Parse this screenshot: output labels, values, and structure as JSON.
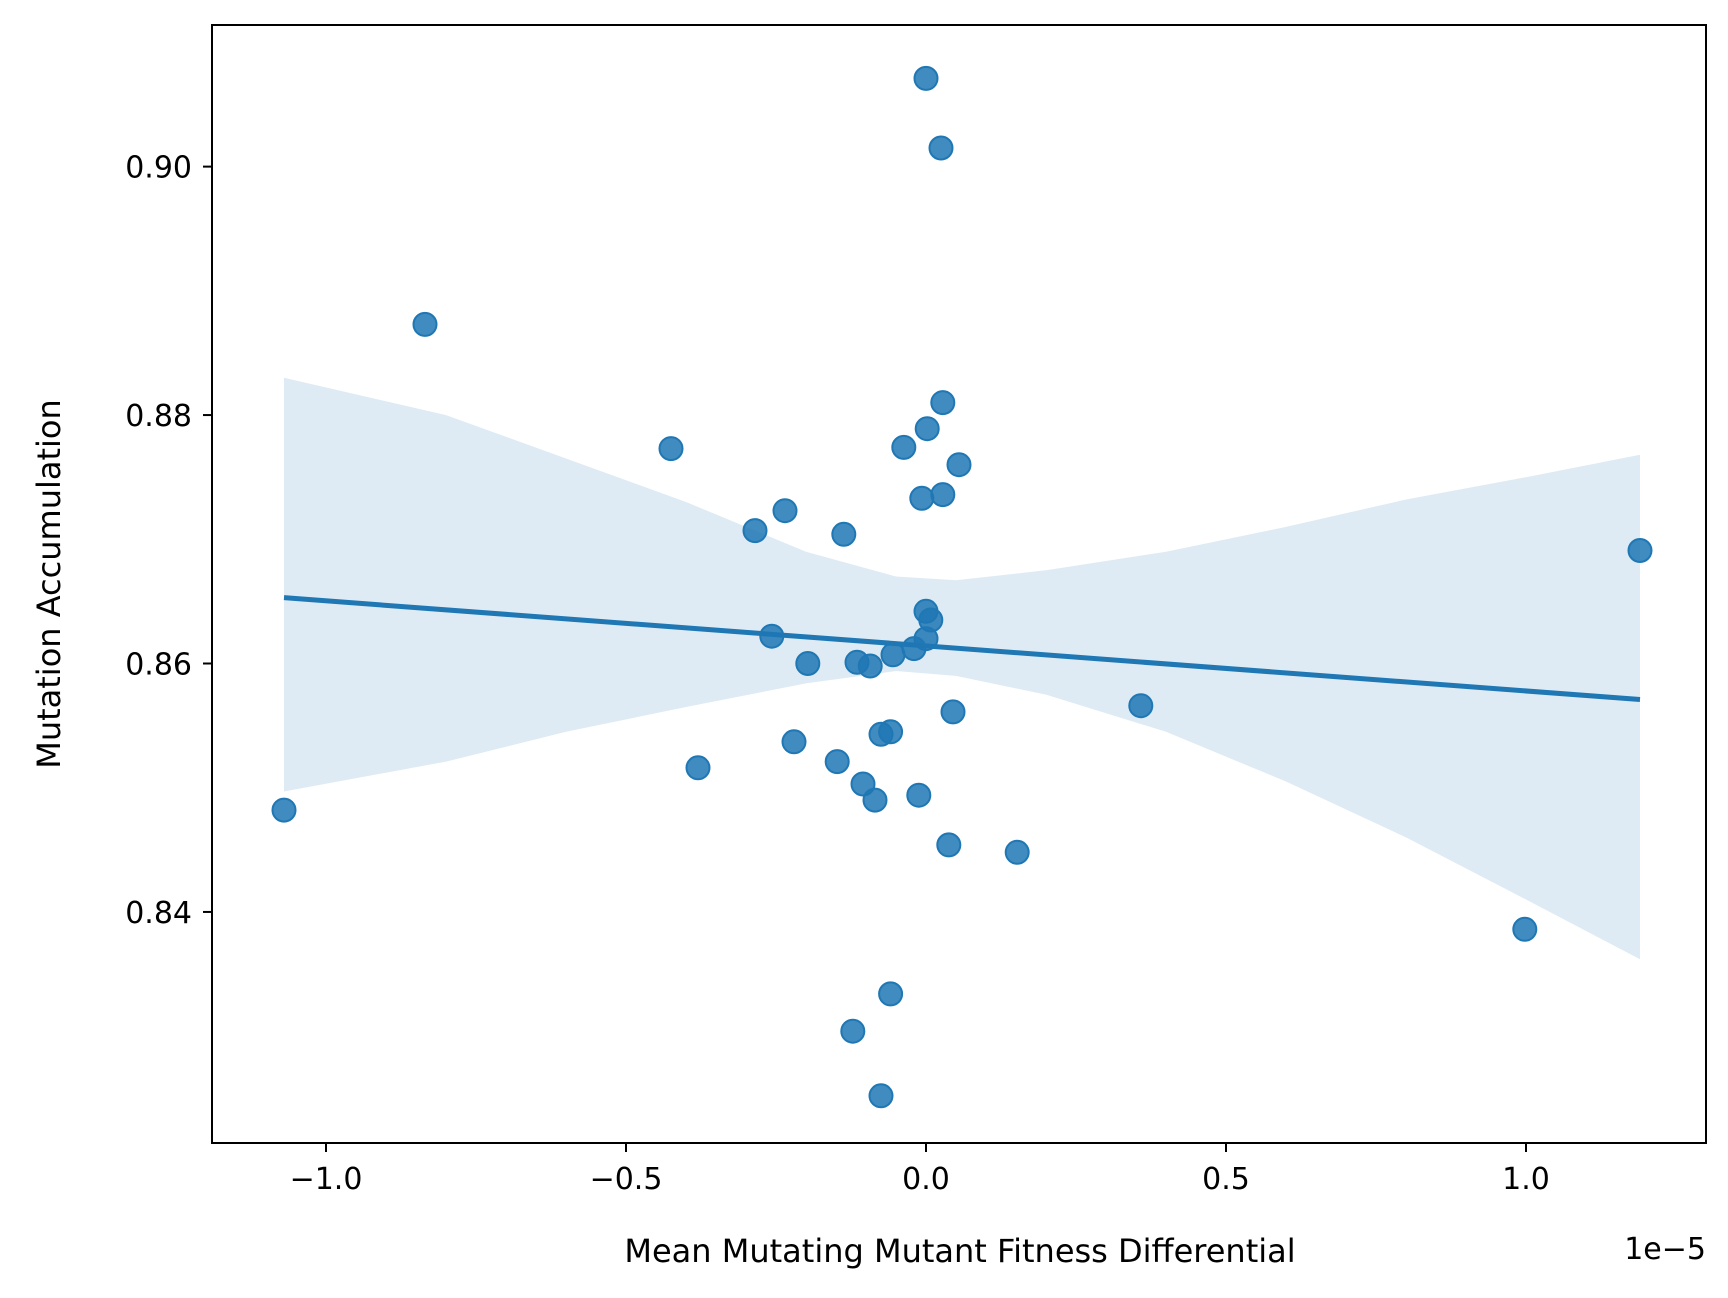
{
  "chart_data": {
    "type": "scatter",
    "title": "",
    "xlabel": "Mean Mutating Mutant Fitness Differential",
    "ylabel": "Mutation Accumulation",
    "x_offset_text": "1e−5",
    "xlim": [
      -1.19,
      1.3
    ],
    "ylim": [
      0.8214,
      0.9114
    ],
    "xticks": [
      {
        "value": -1.0,
        "label": "−1.0"
      },
      {
        "value": -0.5,
        "label": "−0.5"
      },
      {
        "value": 0.0,
        "label": "0.0"
      },
      {
        "value": 0.5,
        "label": "0.5"
      },
      {
        "value": 1.0,
        "label": "1.0"
      }
    ],
    "yticks": [
      {
        "value": 0.84,
        "label": "0.84"
      },
      {
        "value": 0.86,
        "label": "0.86"
      },
      {
        "value": 0.88,
        "label": "0.88"
      },
      {
        "value": 0.9,
        "label": "0.90"
      }
    ],
    "grid": false,
    "legend": "none",
    "colors": {
      "points": "#1f77b4",
      "line": "#1f77b4",
      "band": "#1f77b4"
    },
    "points": [
      {
        "x": 0.0,
        "y": 0.9071
      },
      {
        "x": 0.025,
        "y": 0.9015
      },
      {
        "x": -0.835,
        "y": 0.8873
      },
      {
        "x": 0.028,
        "y": 0.881
      },
      {
        "x": 0.002,
        "y": 0.8789
      },
      {
        "x": -0.425,
        "y": 0.8773
      },
      {
        "x": -0.037,
        "y": 0.8774
      },
      {
        "x": 0.055,
        "y": 0.876
      },
      {
        "x": -0.007,
        "y": 0.8733
      },
      {
        "x": 0.028,
        "y": 0.8736
      },
      {
        "x": -0.235,
        "y": 0.8723
      },
      {
        "x": -0.285,
        "y": 0.8707
      },
      {
        "x": -0.137,
        "y": 0.8704
      },
      {
        "x": 1.19,
        "y": 0.8691
      },
      {
        "x": 0.0,
        "y": 0.8642
      },
      {
        "x": 0.008,
        "y": 0.8635
      },
      {
        "x": -0.257,
        "y": 0.8622
      },
      {
        "x": 0.0,
        "y": 0.862
      },
      {
        "x": -0.02,
        "y": 0.8612
      },
      {
        "x": -0.055,
        "y": 0.8607
      },
      {
        "x": -0.115,
        "y": 0.8601
      },
      {
        "x": -0.197,
        "y": 0.86
      },
      {
        "x": -0.093,
        "y": 0.8598
      },
      {
        "x": 0.045,
        "y": 0.8561
      },
      {
        "x": 0.358,
        "y": 0.8566
      },
      {
        "x": -0.075,
        "y": 0.8543
      },
      {
        "x": -0.059,
        "y": 0.8545
      },
      {
        "x": -0.22,
        "y": 0.8537
      },
      {
        "x": -0.148,
        "y": 0.8521
      },
      {
        "x": -0.38,
        "y": 0.8516
      },
      {
        "x": -0.105,
        "y": 0.8503
      },
      {
        "x": -0.012,
        "y": 0.8494
      },
      {
        "x": -0.085,
        "y": 0.849
      },
      {
        "x": -1.07,
        "y": 0.8482
      },
      {
        "x": 0.038,
        "y": 0.8454
      },
      {
        "x": 0.152,
        "y": 0.8448
      },
      {
        "x": 0.998,
        "y": 0.8386
      },
      {
        "x": -0.059,
        "y": 0.8334
      },
      {
        "x": -0.122,
        "y": 0.8304
      },
      {
        "x": -0.075,
        "y": 0.8252
      }
    ],
    "regression": {
      "x": [
        -1.07,
        1.19
      ],
      "y": [
        0.8653,
        0.8571
      ]
    },
    "ci_band": [
      {
        "x": -1.07,
        "lo": 0.8497,
        "hi": 0.883
      },
      {
        "x": -0.8,
        "lo": 0.8521,
        "hi": 0.88
      },
      {
        "x": -0.6,
        "lo": 0.8545,
        "hi": 0.8765
      },
      {
        "x": -0.4,
        "lo": 0.8565,
        "hi": 0.873
      },
      {
        "x": -0.2,
        "lo": 0.8584,
        "hi": 0.869
      },
      {
        "x": -0.05,
        "lo": 0.8594,
        "hi": 0.867
      },
      {
        "x": 0.05,
        "lo": 0.859,
        "hi": 0.8667
      },
      {
        "x": 0.2,
        "lo": 0.8575,
        "hi": 0.8675
      },
      {
        "x": 0.4,
        "lo": 0.8545,
        "hi": 0.869
      },
      {
        "x": 0.6,
        "lo": 0.8505,
        "hi": 0.871
      },
      {
        "x": 0.8,
        "lo": 0.846,
        "hi": 0.8732
      },
      {
        "x": 1.0,
        "lo": 0.841,
        "hi": 0.875
      },
      {
        "x": 1.19,
        "lo": 0.8362,
        "hi": 0.8768
      }
    ]
  }
}
